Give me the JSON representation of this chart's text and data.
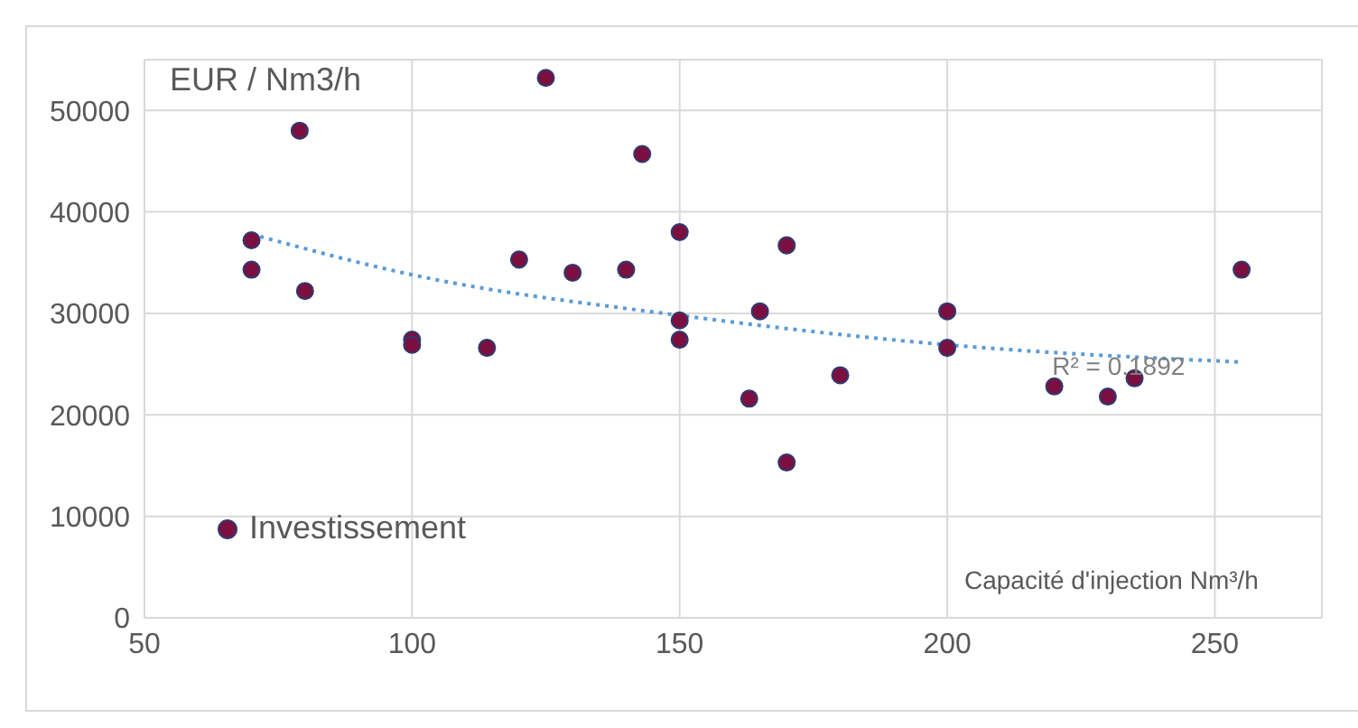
{
  "chart_data": {
    "type": "scatter",
    "ylabel": "EUR / Nm3/h",
    "xlabel": "Capacité d'injection Nm³/h",
    "xlim": [
      50,
      270
    ],
    "xticks": [
      50,
      100,
      150,
      200,
      250
    ],
    "ylim": [
      0,
      55000
    ],
    "yticks": [
      0,
      10000,
      20000,
      30000,
      40000,
      50000
    ],
    "grid": true,
    "legend": "bottom left",
    "annotations": [
      {
        "text": "R² = 0.1892",
        "x": 232,
        "y": 24800
      }
    ],
    "series": [
      {
        "name": "Investissement",
        "marker": "circle",
        "color": "#7b1040",
        "x": [
          70,
          70,
          79,
          80,
          100,
          100,
          114,
          120,
          125,
          130,
          140,
          143,
          150,
          150,
          150,
          163,
          165,
          170,
          170,
          180,
          200,
          200,
          220,
          230,
          235,
          255
        ],
        "values": [
          37200,
          34300,
          48000,
          32200,
          27400,
          26900,
          26600,
          35300,
          53200,
          34000,
          34300,
          45700,
          38000,
          29300,
          27400,
          21600,
          30200,
          36700,
          15300,
          23900,
          30200,
          26600,
          22800,
          21800,
          23600,
          34300
        ]
      },
      {
        "type": "line",
        "color": "#5b9bd5",
        "line_style": "dotted",
        "x": [
          70,
          100,
          150,
          200,
          255
        ],
        "values": [
          37800,
          33800,
          29800,
          26900,
          25200
        ]
      }
    ]
  }
}
